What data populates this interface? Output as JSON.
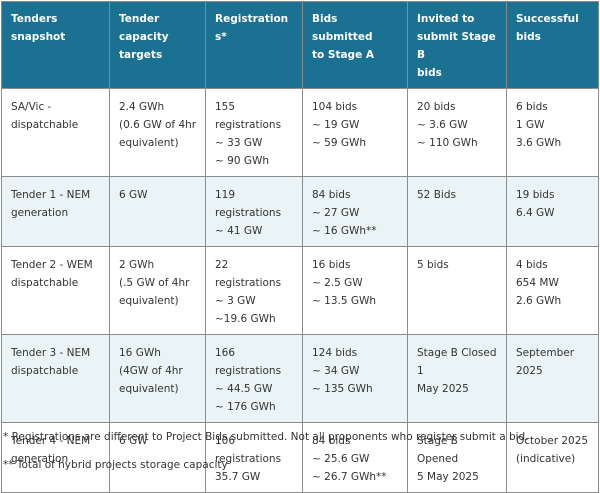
{
  "table": {
    "headers": [
      "Tenders\nsnapshot",
      "Tender\ncapacity\ntargets",
      "Registrations*",
      "Bids submitted\nto Stage A",
      "Invited to\nsubmit Stage B\nbids",
      "Successful\nbids"
    ],
    "rows": [
      [
        "SA/Vic -\ndispatchable",
        "2.4 GWh\n(0.6 GW of 4hr\nequivalent)",
        "155\nregistrations\n~ 33 GW\n~ 90 GWh",
        "104 bids\n~ 19 GW\n~ 59 GWh",
        "20 bids\n~ 3.6 GW\n~ 110 GWh",
        "6 bids\n1 GW\n3.6 GWh"
      ],
      [
        "Tender 1 - NEM\ngeneration",
        "6 GW",
        "119\nregistrations\n~ 41 GW",
        "84 bids\n~ 27 GW\n~ 16 GWh**",
        "52 Bids",
        "19 bids\n6.4 GW"
      ],
      [
        "Tender 2 - WEM\ndispatchable",
        "2 GWh\n(.5 GW of 4hr\nequivalent)",
        "22 registrations\n~ 3 GW\n~19.6 GWh",
        "16 bids\n~ 2.5 GW\n~ 13.5 GWh",
        "5 bids",
        "4 bids\n654 MW\n2.6 GWh"
      ],
      [
        "Tender 3 - NEM\ndispatchable",
        "16 GWh\n(4GW of 4hr\nequivalent)",
        "166\nregistrations\n~ 44.5 GW\n~ 176 GWh",
        "124 bids\n~ 34 GW\n~ 135 GWh",
        "Stage B Closed 1\nMay 2025",
        "September\n2025"
      ],
      [
        "Tender 4 - NEM\ngeneration",
        "6 GW",
        "106\nregistrations\n35.7 GW",
        "84 bids\n~ 25.6 GW\n~ 26.7 GWh**",
        " Stage B Opened\n5 May 2025",
        "October 2025\n(indicative)"
      ]
    ]
  },
  "notes": {
    "registrations": "* Registrations are different to Project Bids submitted. Not all proponents who register submit a bid.",
    "storage": "** Total of hybrid projects storage capacity"
  },
  "colors": {
    "header_bg": "#1b7191",
    "header_text": "#ffffff",
    "alt_row_bg": "#eaf4f6",
    "border": "#8c8c8c"
  }
}
